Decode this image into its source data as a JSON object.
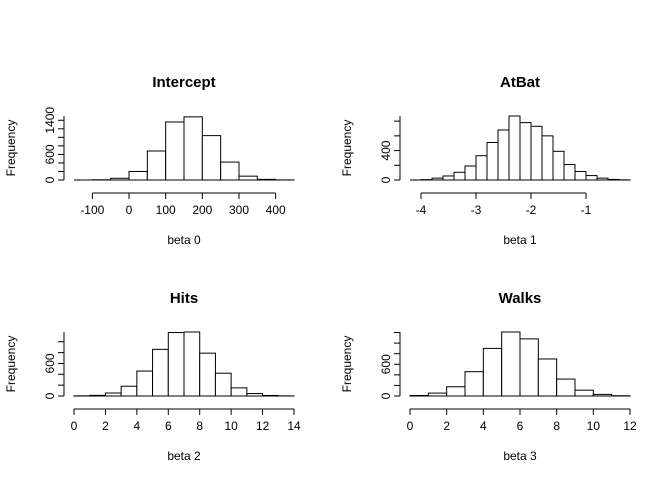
{
  "chart_data": [
    {
      "type": "histogram",
      "title": "Intercept",
      "xlabel": "beta 0",
      "ylabel": "Frequency",
      "x_ticks": [
        -100,
        0,
        100,
        200,
        300,
        400
      ],
      "y_ticks": [
        0,
        600,
        1400
      ],
      "xlim": [
        -150,
        450
      ],
      "ylim": [
        0,
        1500
      ],
      "bins": [
        {
          "x0": -150,
          "x1": -100,
          "count": 0
        },
        {
          "x0": -100,
          "x1": -50,
          "count": 5
        },
        {
          "x0": -50,
          "x1": 0,
          "count": 40
        },
        {
          "x0": 0,
          "x1": 50,
          "count": 200
        },
        {
          "x0": 50,
          "x1": 100,
          "count": 680
        },
        {
          "x0": 100,
          "x1": 150,
          "count": 1360
        },
        {
          "x0": 150,
          "x1": 200,
          "count": 1480
        },
        {
          "x0": 200,
          "x1": 250,
          "count": 1040
        },
        {
          "x0": 250,
          "x1": 300,
          "count": 420
        },
        {
          "x0": 300,
          "x1": 350,
          "count": 90
        },
        {
          "x0": 350,
          "x1": 400,
          "count": 15
        },
        {
          "x0": 400,
          "x1": 450,
          "count": 2
        }
      ]
    },
    {
      "type": "histogram",
      "title": "AtBat",
      "xlabel": "beta 1",
      "ylabel": "Frequency",
      "x_ticks": [
        -4,
        -3,
        -2,
        -1
      ],
      "y_ticks": [
        0,
        400
      ],
      "xlim": [
        -4.2,
        -0.2
      ],
      "ylim": [
        0,
        870
      ],
      "bins": [
        {
          "x0": -4.2,
          "x1": -4.0,
          "count": 0
        },
        {
          "x0": -4.0,
          "x1": -3.8,
          "count": 5
        },
        {
          "x0": -3.8,
          "x1": -3.6,
          "count": 25
        },
        {
          "x0": -3.6,
          "x1": -3.4,
          "count": 55
        },
        {
          "x0": -3.4,
          "x1": -3.2,
          "count": 105
        },
        {
          "x0": -3.2,
          "x1": -3.0,
          "count": 190
        },
        {
          "x0": -3.0,
          "x1": -2.8,
          "count": 330
        },
        {
          "x0": -2.8,
          "x1": -2.6,
          "count": 510
        },
        {
          "x0": -2.6,
          "x1": -2.4,
          "count": 680
        },
        {
          "x0": -2.4,
          "x1": -2.2,
          "count": 870
        },
        {
          "x0": -2.2,
          "x1": -2.0,
          "count": 780
        },
        {
          "x0": -2.0,
          "x1": -1.8,
          "count": 730
        },
        {
          "x0": -1.8,
          "x1": -1.6,
          "count": 600
        },
        {
          "x0": -1.6,
          "x1": -1.4,
          "count": 390
        },
        {
          "x0": -1.4,
          "x1": -1.2,
          "count": 210
        },
        {
          "x0": -1.2,
          "x1": -1.0,
          "count": 115
        },
        {
          "x0": -1.0,
          "x1": -0.8,
          "count": 60
        },
        {
          "x0": -0.8,
          "x1": -0.6,
          "count": 25
        },
        {
          "x0": -0.6,
          "x1": -0.4,
          "count": 8
        },
        {
          "x0": -0.4,
          "x1": -0.2,
          "count": 2
        }
      ]
    },
    {
      "type": "histogram",
      "title": "Hits",
      "xlabel": "beta 2",
      "ylabel": "Frequency",
      "x_ticks": [
        0,
        2,
        4,
        6,
        8,
        10,
        12,
        14
      ],
      "y_ticks": [
        0,
        600
      ],
      "xlim": [
        0,
        14
      ],
      "ylim": [
        0,
        1180
      ],
      "bins": [
        {
          "x0": 0,
          "x1": 1,
          "count": 3
        },
        {
          "x0": 1,
          "x1": 2,
          "count": 12
        },
        {
          "x0": 2,
          "x1": 3,
          "count": 55
        },
        {
          "x0": 3,
          "x1": 4,
          "count": 180
        },
        {
          "x0": 4,
          "x1": 5,
          "count": 460
        },
        {
          "x0": 5,
          "x1": 6,
          "count": 860
        },
        {
          "x0": 6,
          "x1": 7,
          "count": 1170
        },
        {
          "x0": 7,
          "x1": 8,
          "count": 1180
        },
        {
          "x0": 8,
          "x1": 9,
          "count": 790
        },
        {
          "x0": 9,
          "x1": 10,
          "count": 420
        },
        {
          "x0": 10,
          "x1": 11,
          "count": 150
        },
        {
          "x0": 11,
          "x1": 12,
          "count": 45
        },
        {
          "x0": 12,
          "x1": 13,
          "count": 10
        },
        {
          "x0": 13,
          "x1": 14,
          "count": 2
        }
      ]
    },
    {
      "type": "histogram",
      "title": "Walks",
      "xlabel": "beta 3",
      "ylabel": "Frequency",
      "x_ticks": [
        0,
        2,
        4,
        6,
        8,
        10,
        12
      ],
      "y_ticks": [
        0,
        600
      ],
      "xlim": [
        0,
        12
      ],
      "ylim": [
        0,
        1210
      ],
      "bins": [
        {
          "x0": 0,
          "x1": 1,
          "count": 10
        },
        {
          "x0": 1,
          "x1": 2,
          "count": 55
        },
        {
          "x0": 2,
          "x1": 3,
          "count": 175
        },
        {
          "x0": 3,
          "x1": 4,
          "count": 460
        },
        {
          "x0": 4,
          "x1": 5,
          "count": 900
        },
        {
          "x0": 5,
          "x1": 6,
          "count": 1210
        },
        {
          "x0": 6,
          "x1": 7,
          "count": 1080
        },
        {
          "x0": 7,
          "x1": 8,
          "count": 700
        },
        {
          "x0": 8,
          "x1": 9,
          "count": 320
        },
        {
          "x0": 9,
          "x1": 10,
          "count": 110
        },
        {
          "x0": 10,
          "x1": 11,
          "count": 30
        },
        {
          "x0": 11,
          "x1": 12,
          "count": 5
        }
      ]
    }
  ]
}
